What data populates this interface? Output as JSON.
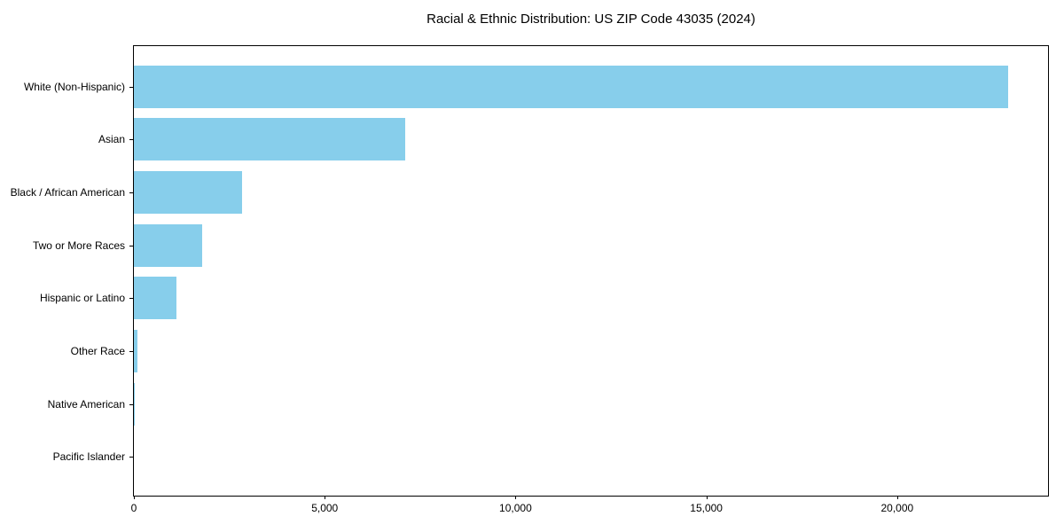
{
  "chart_data": {
    "type": "bar",
    "orientation": "horizontal",
    "title": "Racial & Ethnic Distribution: US ZIP Code 43035 (2024)",
    "categories": [
      "White (Non-Hispanic)",
      "Asian",
      "Black / African American",
      "Two or More Races",
      "Hispanic or Latino",
      "Other Race",
      "Native American",
      "Pacific Islander"
    ],
    "values": [
      22900,
      7100,
      2830,
      1790,
      1120,
      95,
      25,
      0
    ],
    "xlabel": "",
    "ylabel": "",
    "xlim": [
      0,
      24000
    ],
    "xticks": [
      0,
      5000,
      10000,
      15000,
      20000
    ],
    "xtick_labels": [
      "0",
      "5,000",
      "10,000",
      "15,000",
      "20,000"
    ],
    "bar_color": "#87CEEB",
    "grid": false,
    "legend": "none",
    "frame": true
  }
}
